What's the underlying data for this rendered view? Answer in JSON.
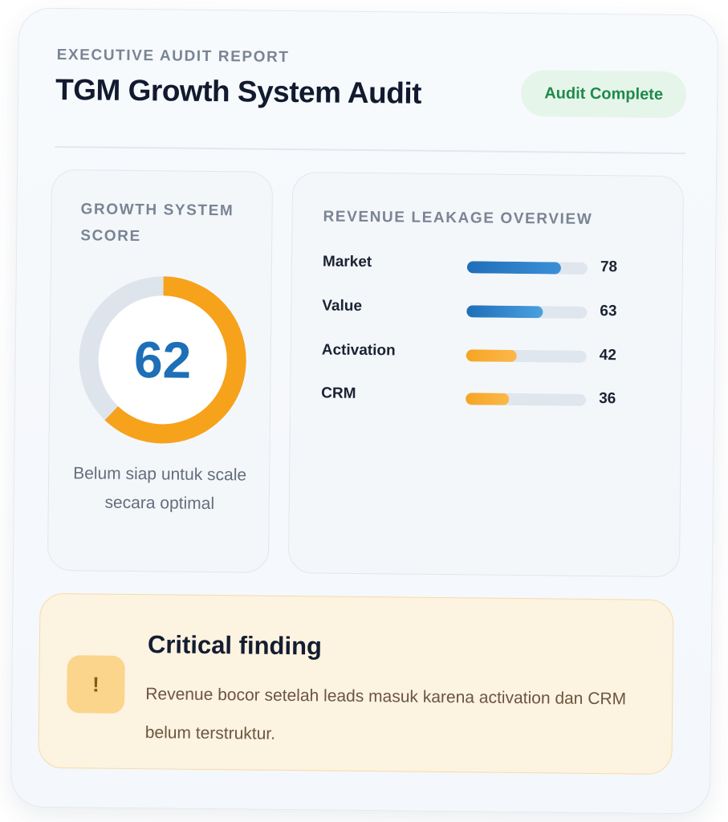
{
  "header": {
    "eyebrow": "EXECUTIVE AUDIT REPORT",
    "title": "TGM Growth System Audit",
    "status_badge": "Audit Complete"
  },
  "score_card": {
    "heading": "GROWTH SYSTEM SCORE",
    "score": 62,
    "score_max": 100,
    "caption": "Belum siap untuk scale secara optimal",
    "colors": {
      "progress": "#f7a21b",
      "track": "#dde4ec",
      "value": "#1d6fb7"
    }
  },
  "leakage_card": {
    "heading": "REVENUE LEAKAGE OVERVIEW",
    "scale_max": 100,
    "items": [
      {
        "label": "Market",
        "value": 78,
        "color": "blue"
      },
      {
        "label": "Value",
        "value": 63,
        "color": "blue2"
      },
      {
        "label": "Activation",
        "value": 42,
        "color": "orange"
      },
      {
        "label": "CRM",
        "value": 36,
        "color": "orange"
      }
    ]
  },
  "finding": {
    "icon": "warning-exclamation-icon",
    "icon_glyph": "!",
    "title": "Critical finding",
    "text": "Revenue bocor setelah leads masuk karena activation dan CRM belum terstruktur."
  }
}
